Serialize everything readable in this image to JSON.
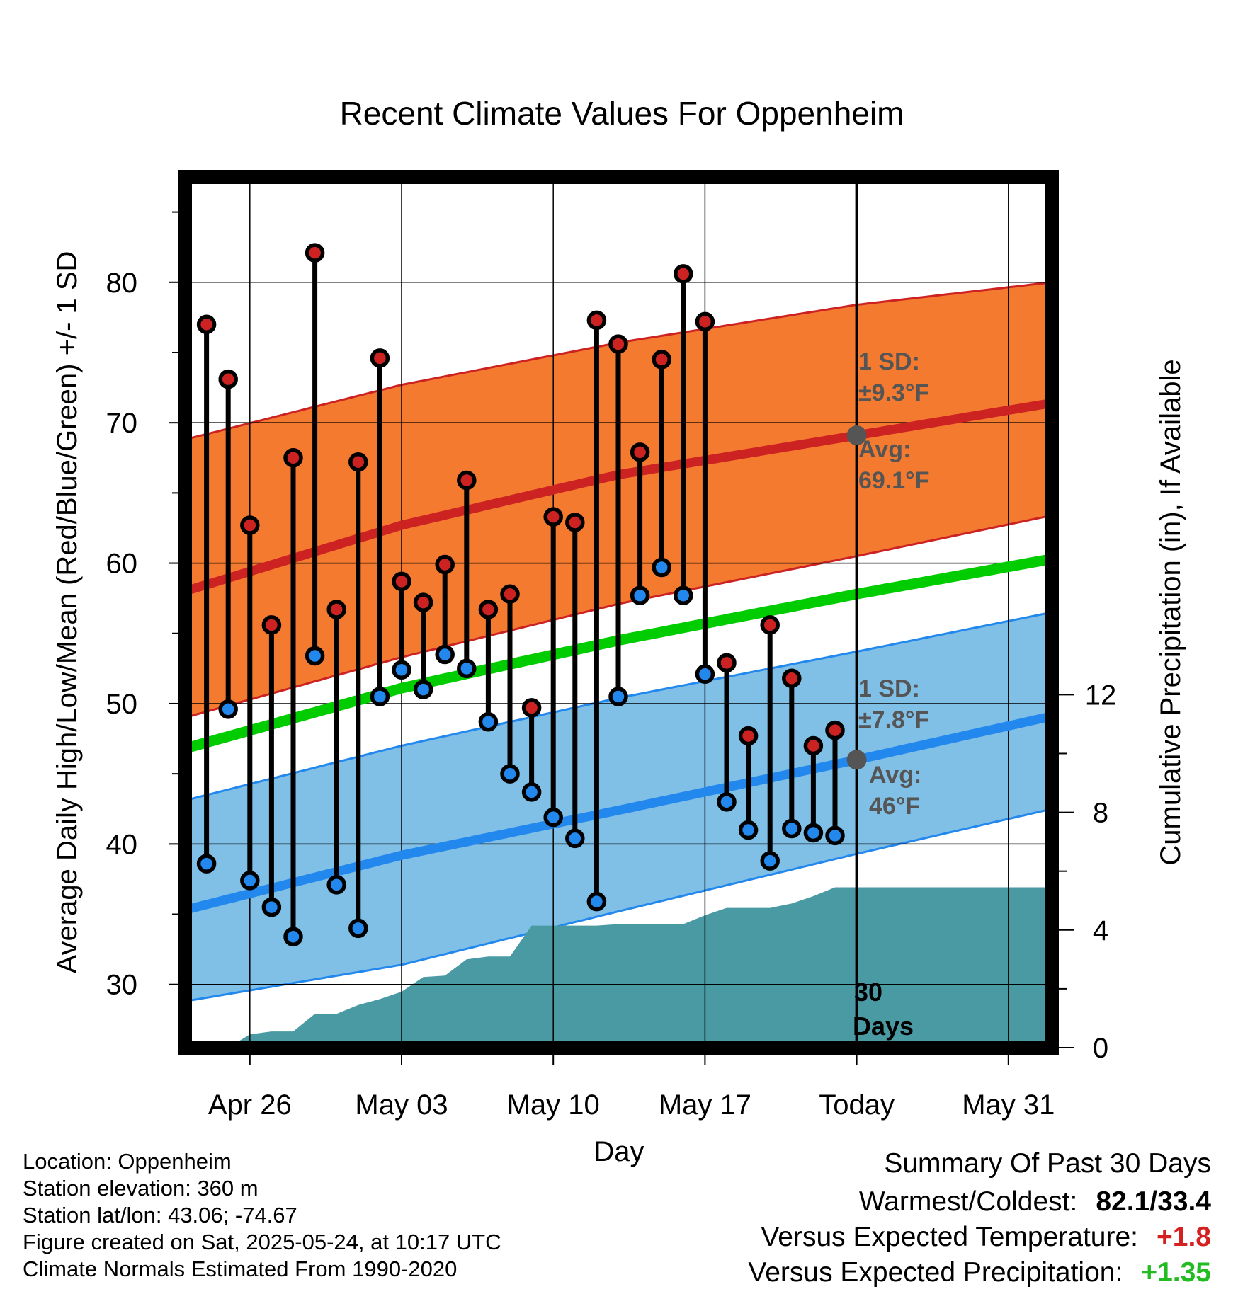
{
  "chart_data": {
    "type": "line",
    "title": "Recent Climate Values For Oppenheim",
    "xlabel": "Day",
    "ylabel": "Average Daily High/Low/Mean (Red/Blue/Green) +/- 1 SD",
    "y2label": "Cumulative Precipitation (in), If Available",
    "x_tick_labels": [
      "Apr 26",
      "May 03",
      "May 10",
      "May 17",
      "Today",
      "May 31"
    ],
    "x_tick_dates": [
      "2025-04-26",
      "2025-05-03",
      "2025-05-10",
      "2025-05-17",
      "2025-05-24",
      "2025-05-31"
    ],
    "x_range": [
      "2025-04-23",
      "2025-06-02"
    ],
    "ylim": [
      25.5,
      87.5
    ],
    "y_ticks": [
      30,
      40,
      50,
      60,
      70,
      80
    ],
    "y2lim": [
      0,
      29.6
    ],
    "y2_ticks": [
      0,
      4,
      8,
      12
    ],
    "grid": true,
    "normals": {
      "dates": [
        "2025-04-23",
        "2025-05-03",
        "2025-05-13",
        "2025-05-24",
        "2025-06-02"
      ],
      "high_avg": [
        58.0,
        62.7,
        66.3,
        69.1,
        71.4
      ],
      "high_plus_1sd": [
        68.8,
        72.7,
        75.7,
        78.4,
        80.0
      ],
      "high_minus_1sd": [
        49.0,
        53.3,
        57.1,
        60.5,
        63.4
      ],
      "low_avg": [
        35.3,
        39.2,
        42.4,
        46.0,
        49.1
      ],
      "low_plus_1sd": [
        43.1,
        47.0,
        50.4,
        53.7,
        56.5
      ],
      "low_minus_1sd": [
        28.8,
        31.4,
        35.2,
        39.3,
        42.5
      ],
      "mean_avg": [
        46.8,
        51.1,
        54.5,
        57.8,
        60.3
      ]
    },
    "series": [
      {
        "name": "High",
        "color": "#cc2222",
        "x": [
          "2025-04-24",
          "2025-04-25",
          "2025-04-26",
          "2025-04-27",
          "2025-04-28",
          "2025-04-29",
          "2025-04-30",
          "2025-05-01",
          "2025-05-02",
          "2025-05-03",
          "2025-05-04",
          "2025-05-05",
          "2025-05-06",
          "2025-05-07",
          "2025-05-08",
          "2025-05-09",
          "2025-05-10",
          "2025-05-11",
          "2025-05-12",
          "2025-05-13",
          "2025-05-14",
          "2025-05-15",
          "2025-05-16",
          "2025-05-17",
          "2025-05-18",
          "2025-05-19",
          "2025-05-20",
          "2025-05-21",
          "2025-05-22",
          "2025-05-23"
        ],
        "values": [
          77.0,
          73.1,
          62.7,
          55.6,
          67.5,
          82.1,
          56.7,
          67.2,
          74.6,
          58.7,
          57.2,
          59.9,
          65.9,
          56.7,
          57.8,
          49.7,
          63.3,
          62.9,
          77.3,
          75.6,
          67.9,
          74.5,
          80.6,
          77.2,
          52.9,
          47.7,
          55.6,
          51.8,
          47.0,
          48.1
        ]
      },
      {
        "name": "Low",
        "color": "#2288ee",
        "x": [
          "2025-04-24",
          "2025-04-25",
          "2025-04-26",
          "2025-04-27",
          "2025-04-28",
          "2025-04-29",
          "2025-04-30",
          "2025-05-01",
          "2025-05-02",
          "2025-05-03",
          "2025-05-04",
          "2025-05-05",
          "2025-05-06",
          "2025-05-07",
          "2025-05-08",
          "2025-05-09",
          "2025-05-10",
          "2025-05-11",
          "2025-05-12",
          "2025-05-13",
          "2025-05-14",
          "2025-05-15",
          "2025-05-16",
          "2025-05-17",
          "2025-05-18",
          "2025-05-19",
          "2025-05-20",
          "2025-05-21",
          "2025-05-22",
          "2025-05-23"
        ],
        "values": [
          38.6,
          49.6,
          37.4,
          35.5,
          33.4,
          53.4,
          37.1,
          34.0,
          50.5,
          52.4,
          51.0,
          53.5,
          52.5,
          48.7,
          45.0,
          43.7,
          41.9,
          40.4,
          35.9,
          50.5,
          57.7,
          59.7,
          57.7,
          52.1,
          43.0,
          41.0,
          38.8,
          41.1,
          40.8,
          40.6
        ]
      }
    ],
    "precip": {
      "name": "Cumulative Precipitation",
      "color": "#4a9aa4",
      "x": [
        "2025-04-25",
        "2025-04-26",
        "2025-04-27",
        "2025-04-28",
        "2025-04-29",
        "2025-04-30",
        "2025-05-01",
        "2025-05-02",
        "2025-05-03",
        "2025-05-04",
        "2025-05-05",
        "2025-05-06",
        "2025-05-07",
        "2025-05-08",
        "2025-05-09",
        "2025-05-10",
        "2025-05-11",
        "2025-05-12",
        "2025-05-13",
        "2025-05-14",
        "2025-05-15",
        "2025-05-16",
        "2025-05-17",
        "2025-05-18",
        "2025-05-19",
        "2025-05-20",
        "2025-05-21",
        "2025-05-22",
        "2025-05-23",
        "2025-05-24",
        "2025-06-02"
      ],
      "values": [
        0.0,
        0.45,
        0.55,
        0.55,
        1.15,
        1.15,
        1.45,
        1.65,
        1.9,
        2.4,
        2.45,
        3.0,
        3.1,
        3.1,
        4.15,
        4.15,
        4.15,
        4.15,
        4.2,
        4.2,
        4.2,
        4.2,
        4.5,
        4.75,
        4.75,
        4.75,
        4.9,
        5.15,
        5.45,
        5.45,
        5.45
      ]
    },
    "today_marker": {
      "date": "2025-05-24",
      "high_avg": 69.1,
      "low_avg": 46.0
    },
    "annotations": {
      "high_sd_line1": "1 SD:",
      "high_sd_line2": "±9.3°F",
      "high_avg_line1": "Avg:",
      "high_avg_line2": "69.1°F",
      "low_sd_line1": "1 SD:",
      "low_sd_line2": "±7.8°F",
      "low_avg_line1": "Avg:",
      "low_avg_line2": "46°F",
      "days_line1": "30",
      "days_line2": "Days"
    }
  },
  "colors": {
    "high_band": "#f47a30",
    "high_line": "#cc2222",
    "low_band": "#80bfe6",
    "low_line": "#2288ee",
    "mean_line": "#00cc00",
    "precip_fill": "#4a9aa4",
    "marker": "#555555"
  },
  "info": {
    "location": "Location: Oppenheim",
    "elevation": "Station elevation: 360 m",
    "latlon": "Station lat/lon: 43.06; -74.67",
    "created": "Figure created on Sat, 2025-05-24, at 10:17 UTC",
    "normals": "Climate Normals Estimated From 1990-2020"
  },
  "summary": {
    "title": "Summary Of Past 30 Days",
    "warm_cold_label": "Warmest/Coldest:",
    "warm_cold_value": "82.1/33.4",
    "temp_label": "Versus Expected Temperature:",
    "temp_value": "+1.8",
    "precip_label": "Versus Expected Precipitation:",
    "precip_value": "+1.35"
  }
}
